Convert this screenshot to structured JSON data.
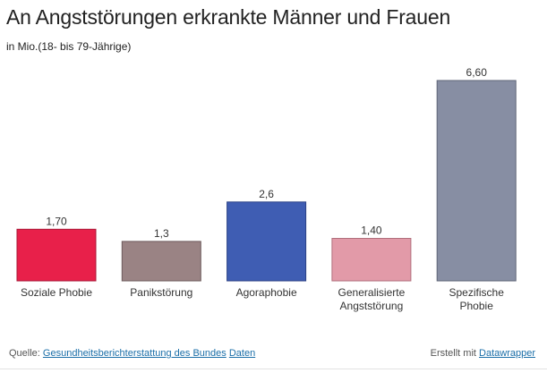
{
  "header": {
    "title": "An Angststörungen erkrankte Männer und Frauen",
    "subtitle": "in Mio.(18- bis 79-Jährige)"
  },
  "chart_data": {
    "type": "bar",
    "title": "An Angststörungen erkrankte Männer und Frauen",
    "subtitle": "in Mio.(18- bis 79-Jährige)",
    "xlabel": "",
    "ylabel": "",
    "ylim": [
      0,
      6.6
    ],
    "grid": false,
    "categories": [
      [
        "Soziale Phobie"
      ],
      [
        "Panikstörung"
      ],
      [
        "Agoraphobie"
      ],
      [
        "Generalisierte",
        "Angststörung"
      ],
      [
        "Spezifische",
        "Phobie"
      ]
    ],
    "values": [
      1.7,
      1.3,
      2.6,
      1.4,
      6.6
    ],
    "value_labels": [
      "1,70",
      "1,3",
      "2,6",
      "1,40",
      "6,60"
    ],
    "colors": [
      "#e8204a",
      "#9a8384",
      "#3f5db3",
      "#e29aa8",
      "#878ea3"
    ],
    "border_colors": [
      "#a81636",
      "#6d5b5c",
      "#2c4285",
      "#b06f7c",
      "#5f6577"
    ]
  },
  "footer": {
    "source_prefix": "Quelle:",
    "source_link": "Gesundheitsberichterstattung des Bundes",
    "data_link": "Daten",
    "created_prefix": "Erstellt mit",
    "created_link": "Datawrapper"
  }
}
